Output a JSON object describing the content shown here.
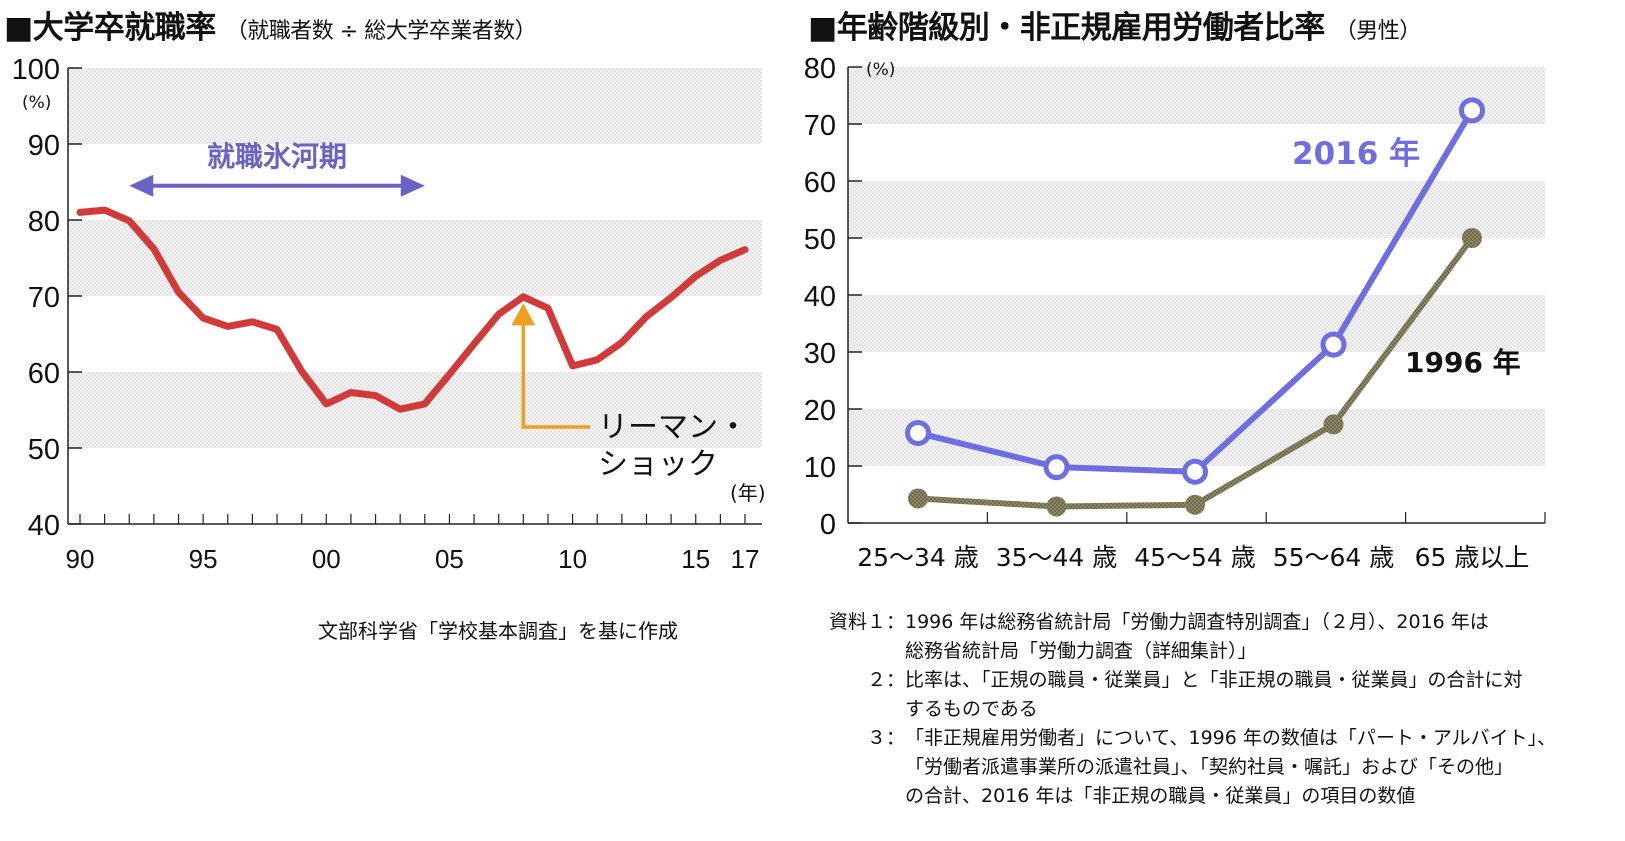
{
  "left_chart": {
    "title": "■大学卒就職率",
    "subtitle": "（就職者数 ÷ 総大学卒業者数）",
    "source": "文部科学省「学校基本調査」を基に作成"
  },
  "right_chart": {
    "title": "■年齢階級別・非正規雇用労働者比率",
    "subtitle": "（男性）"
  },
  "notes": [
    {
      "label": "資料１：",
      "lines": [
        "1996 年は総務省統計局「労働力調査特別調査」（２月）、2016 年は",
        "総務省統計局「労働力調査（詳細集計）」"
      ]
    },
    {
      "label": "２：",
      "lines": [
        "比率は、「正規の職員・従業員」と「非正規の職員・従業員」の合計に対",
        "するものである"
      ]
    },
    {
      "label": "３：",
      "lines": [
        "「非正規雇用労働者」について、1996 年の数値は「パート・アルバイト」、",
        "「労働者派遣事業所の派遣社員」、「契約社員・嘱託」および「その他」",
        "の合計、2016 年は「非正規の職員・従業員」の項目の数値"
      ]
    }
  ],
  "chart_data": [
    {
      "type": "line",
      "title": "■大学卒就職率",
      "subtitle": "（就職者数 ÷ 総大学卒業者数）",
      "y_unit": "(%)",
      "x_unit": "(年)",
      "ylim": [
        40,
        100
      ],
      "y_ticks": [
        "40",
        "50",
        "60",
        "70",
        "80",
        "90",
        "100"
      ],
      "xlim": [
        1990,
        2017
      ],
      "x_tick_labels": [
        {
          "x": 1990,
          "label": "90"
        },
        {
          "x": 1995,
          "label": "95"
        },
        {
          "x": 2000,
          "label": "00"
        },
        {
          "x": 2005,
          "label": "05"
        },
        {
          "x": 2010,
          "label": "10"
        },
        {
          "x": 2015,
          "label": "15"
        },
        {
          "x": 2017,
          "label": "17"
        }
      ],
      "bands": [
        [
          50,
          60
        ],
        [
          70,
          80
        ],
        [
          90,
          100
        ]
      ],
      "grid": false,
      "x": [
        1990,
        1991,
        1992,
        1993,
        1994,
        1995,
        1996,
        1997,
        1998,
        1999,
        2000,
        2001,
        2002,
        2003,
        2004,
        2005,
        2006,
        2007,
        2008,
        2009,
        2010,
        2011,
        2012,
        2013,
        2014,
        2015,
        2016,
        2017
      ],
      "series": [
        {
          "values": [
            81.0,
            81.3,
            79.9,
            76.2,
            70.5,
            67.1,
            66.0,
            66.6,
            65.6,
            60.1,
            55.8,
            57.3,
            56.9,
            55.1,
            55.8,
            59.7,
            63.7,
            67.6,
            69.9,
            68.4,
            60.8,
            61.6,
            63.9,
            67.3,
            69.8,
            72.6,
            74.7,
            76.1
          ],
          "color": "#d23a3a"
        }
      ],
      "annotations": [
        {
          "text": "就職氷河期",
          "type": "span-arrow",
          "x_from": 1992,
          "x_to": 2004,
          "y": 84.5,
          "color": "#6a63c6"
        },
        {
          "text_lines": [
            "リーマン・",
            "ショック"
          ],
          "type": "pointer",
          "x": 2008,
          "y": 68.5,
          "color": "#f0a020"
        }
      ]
    },
    {
      "type": "line",
      "title": "■年齢階級別・非正規雇用労働者比率",
      "subtitle": "（男性）",
      "y_unit": "(%)",
      "ylim": [
        0,
        80
      ],
      "y_ticks": [
        "0",
        "10",
        "20",
        "30",
        "40",
        "50",
        "60",
        "70",
        "80"
      ],
      "categories": [
        "25～34 歳",
        "35～44 歳",
        "45～54 歳",
        "55～64 歳",
        "65 歳以上"
      ],
      "bands": [
        [
          10,
          20
        ],
        [
          30,
          40
        ],
        [
          50,
          60
        ],
        [
          70,
          80
        ]
      ],
      "grid": false,
      "series": [
        {
          "name": "2016 年",
          "values": [
            15.8,
            9.8,
            9.0,
            31.3,
            72.4
          ],
          "color": "#6e6ee0",
          "marker": "open-circle"
        },
        {
          "name": "1996 年",
          "values": [
            4.3,
            2.9,
            3.2,
            17.3,
            50.0
          ],
          "color": "#7f7a58",
          "marker": "filled-circle"
        }
      ]
    }
  ]
}
